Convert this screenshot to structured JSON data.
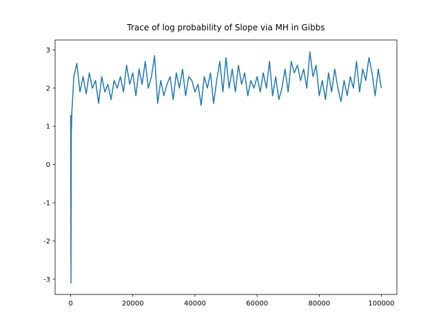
{
  "chart_data": {
    "type": "line",
    "title": "Trace of log probability of Slope via MH in Gibbs",
    "x": [
      0,
      100,
      200,
      400,
      700,
      1000,
      2000,
      3000,
      4000,
      5000,
      6000,
      7000,
      8000,
      9000,
      10000,
      11000,
      12000,
      13000,
      14000,
      15000,
      16000,
      17000,
      18000,
      19000,
      20000,
      21000,
      22000,
      23000,
      24000,
      25000,
      26000,
      27000,
      28000,
      29000,
      30000,
      31000,
      32000,
      33000,
      34000,
      35000,
      36000,
      37000,
      38000,
      39000,
      40000,
      41000,
      42000,
      43000,
      44000,
      45000,
      46000,
      47000,
      48000,
      49000,
      50000,
      51000,
      52000,
      53000,
      54000,
      55000,
      56000,
      57000,
      58000,
      59000,
      60000,
      61000,
      62000,
      63000,
      64000,
      65000,
      66000,
      67000,
      68000,
      69000,
      70000,
      71000,
      72000,
      73000,
      74000,
      75000,
      76000,
      77000,
      78000,
      79000,
      80000,
      81000,
      82000,
      83000,
      84000,
      85000,
      86000,
      87000,
      88000,
      89000,
      90000,
      91000,
      92000,
      93000,
      94000,
      95000,
      96000,
      97000,
      98000,
      99000,
      100000
    ],
    "series": [
      {
        "color": "#1f77b4",
        "values": [
          1.3,
          -3.1,
          0.8,
          1.4,
          1.8,
          2.3,
          2.65,
          1.9,
          2.3,
          1.85,
          2.4,
          2.0,
          2.2,
          1.6,
          2.3,
          1.9,
          2.1,
          1.7,
          2.2,
          2.0,
          2.3,
          1.9,
          2.6,
          2.1,
          2.4,
          1.8,
          2.5,
          2.1,
          2.7,
          2.0,
          2.3,
          2.85,
          1.6,
          2.2,
          1.8,
          2.1,
          2.3,
          1.7,
          2.4,
          2.0,
          2.5,
          1.8,
          2.3,
          2.2,
          1.9,
          2.1,
          1.55,
          2.3,
          2.0,
          2.4,
          1.6,
          2.2,
          2.7,
          1.9,
          2.8,
          2.0,
          2.5,
          1.9,
          2.6,
          2.1,
          2.4,
          1.8,
          2.2,
          2.0,
          2.3,
          1.9,
          2.4,
          2.0,
          2.7,
          1.8,
          2.3,
          1.7,
          2.0,
          2.5,
          1.9,
          2.7,
          2.4,
          2.6,
          2.2,
          2.5,
          2.0,
          2.95,
          2.3,
          2.6,
          1.8,
          2.2,
          1.7,
          2.4,
          1.9,
          2.5,
          2.0,
          1.65,
          2.2,
          1.8,
          2.3,
          2.0,
          2.7,
          1.9,
          2.5,
          2.2,
          2.8,
          2.4,
          1.8,
          2.5,
          2.0
        ]
      }
    ],
    "xlim": [
      -5000,
      105000
    ],
    "ylim": [
      -3.4,
      3.26
    ],
    "xticks": [
      0,
      20000,
      40000,
      60000,
      80000,
      100000
    ],
    "yticks": [
      -3,
      -2,
      -1,
      0,
      1,
      2,
      3
    ],
    "grid": false
  }
}
